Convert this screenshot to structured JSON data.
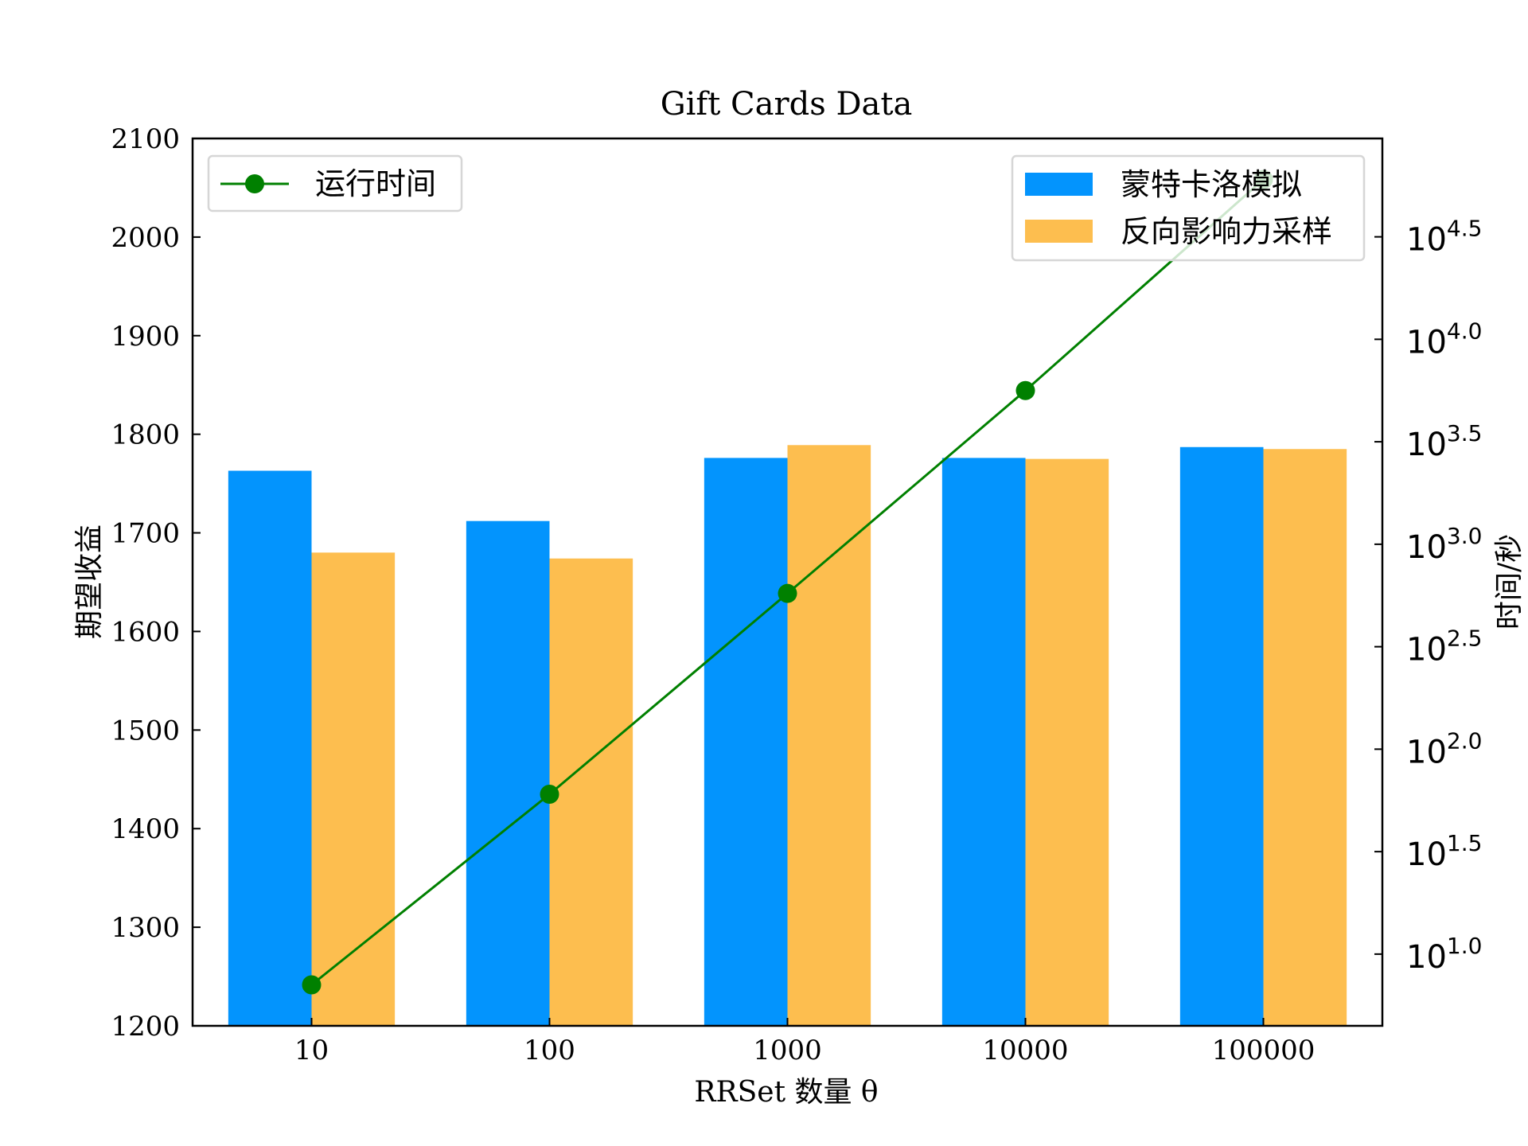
{
  "chart_data": {
    "type": "bar",
    "title": "Gift Cards Data",
    "xlabel": "RRSet 数量 θ",
    "ylabel": "期望收益",
    "y2label": "时间/秒",
    "categories": [
      "10",
      "100",
      "1000",
      "10000",
      "100000"
    ],
    "ylim": [
      1200,
      2100
    ],
    "yticks": [
      "1200",
      "1300",
      "1400",
      "1500",
      "1600",
      "1700",
      "1800",
      "1900",
      "2000",
      "2100"
    ],
    "y2_scale": "log",
    "y2_exp_lim": [
      0.65,
      4.98
    ],
    "y2_ticks": [
      {
        "base": "10",
        "exp": "1.0",
        "value": 1.0
      },
      {
        "base": "10",
        "exp": "1.5",
        "value": 1.5
      },
      {
        "base": "10",
        "exp": "2.0",
        "value": 2.0
      },
      {
        "base": "10",
        "exp": "2.5",
        "value": 2.5
      },
      {
        "base": "10",
        "exp": "3.0",
        "value": 3.0
      },
      {
        "base": "10",
        "exp": "3.5",
        "value": 3.5
      },
      {
        "base": "10",
        "exp": "4.0",
        "value": 4.0
      },
      {
        "base": "10",
        "exp": "4.5",
        "value": 4.5
      }
    ],
    "series": [
      {
        "name": "蒙特卡洛模拟",
        "type": "bar",
        "axis": "left",
        "color": "#0394fd",
        "values": [
          1763,
          1712,
          1776,
          1776,
          1787
        ]
      },
      {
        "name": "反向影响力采样",
        "type": "bar",
        "axis": "right-offset",
        "color": "#fdbe4f",
        "values": [
          1680,
          1674,
          1789,
          1775,
          1785
        ]
      },
      {
        "name": "运行时间",
        "type": "line",
        "axis": "y2",
        "color": "#008000",
        "log10_values": [
          0.85,
          1.78,
          2.76,
          3.75,
          4.78
        ]
      }
    ],
    "legend_left_position": "top-left",
    "legend_right_position": "top-right",
    "grid": false
  }
}
